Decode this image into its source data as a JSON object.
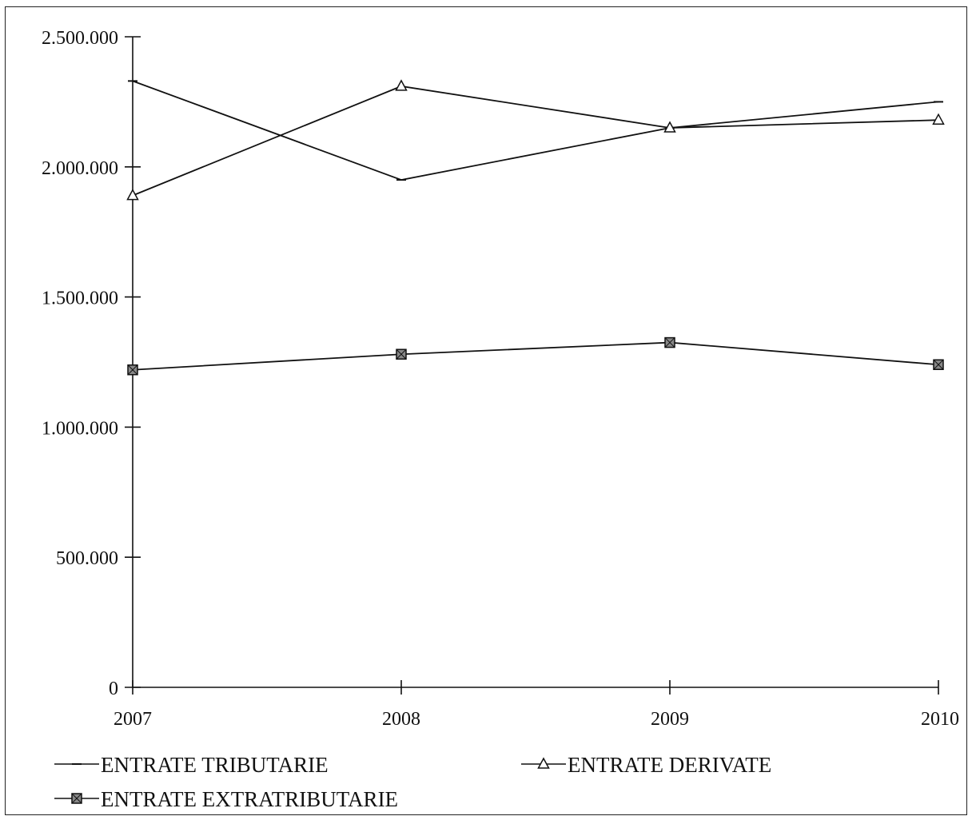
{
  "chart_data": {
    "type": "line",
    "title": "",
    "xlabel": "",
    "ylabel": "",
    "categories": [
      "2007",
      "2008",
      "2009",
      "2010"
    ],
    "ylim": [
      0,
      2500000
    ],
    "y_ticks": [
      0,
      500000,
      1000000,
      1500000,
      2000000,
      2500000
    ],
    "y_tick_labels": [
      "0",
      "500.000",
      "1.000.000",
      "1.500.000",
      "2.000.000",
      "2.500.000"
    ],
    "grid": false,
    "legend_position": "bottom",
    "series": [
      {
        "name": "ENTRATE TRIBUTARIE",
        "marker": "dash",
        "values": [
          2330000,
          1950000,
          2150000,
          2250000
        ]
      },
      {
        "name": "ENTRATE DERIVATE",
        "marker": "triangle",
        "values": [
          1890000,
          2310000,
          2150000,
          2180000
        ]
      },
      {
        "name": "ENTRATE EXTRATRIBUTARIE",
        "marker": "square",
        "values": [
          1220000,
          1280000,
          1325000,
          1240000
        ]
      }
    ]
  }
}
